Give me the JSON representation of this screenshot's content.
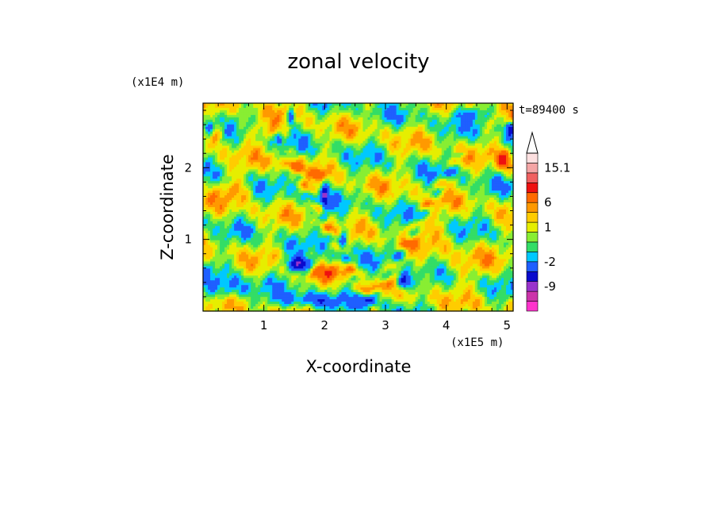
{
  "chart_data": {
    "type": "heatmap",
    "title": "zonal velocity",
    "xlabel": "X-coordinate",
    "ylabel": "Z-coordinate",
    "x_unit": "(x1E5 m)",
    "y_unit": "(x1E4 m)",
    "time_label": "t=89400 s",
    "xlim": [
      0,
      5.1
    ],
    "ylim": [
      0,
      2.9
    ],
    "x_ticks": [
      1,
      2,
      3,
      4,
      5
    ],
    "y_ticks": [
      1,
      2
    ],
    "colorbar": {
      "colors": [
        "#ff33cc",
        "#cc33aa",
        "#9933cc",
        "#0a0acd",
        "#1f5fff",
        "#00c8ff",
        "#33dd66",
        "#88ee33",
        "#e6ee00",
        "#ffcc00",
        "#ff9900",
        "#ff6a00",
        "#ee1111",
        "#f06060",
        "#f4a5a5",
        "#fde0e0"
      ],
      "labels": [
        "-9",
        "-2",
        "1",
        "6",
        "15.1"
      ],
      "label_levels": [
        2.5,
        5,
        8.5,
        11,
        14.5
      ],
      "arrow_top": true
    },
    "features": [
      {
        "cx": 1.0,
        "cz": 2.5,
        "sx": 0.35,
        "sz": 0.12,
        "value": 2.0
      },
      {
        "cx": 1.4,
        "cz": 2.1,
        "sx": 0.3,
        "sz": 0.12,
        "value": 2.0
      },
      {
        "cx": 0.5,
        "cz": 1.7,
        "sx": 0.3,
        "sz": 0.15,
        "value": 2.2
      },
      {
        "cx": 0.2,
        "cz": 2.5,
        "sx": 0.15,
        "sz": 0.15,
        "value": 3.5
      },
      {
        "cx": 0.1,
        "cz": 2.55,
        "sx": 0.08,
        "sz": 0.1,
        "value": -6.0
      },
      {
        "cx": 5.05,
        "cz": 2.55,
        "sx": 0.08,
        "sz": 0.1,
        "value": -5.5
      },
      {
        "cx": 4.95,
        "cz": 2.1,
        "sx": 0.12,
        "sz": 0.14,
        "value": 5.0
      },
      {
        "cx": 2.1,
        "cz": 0.55,
        "sx": 0.3,
        "sz": 0.1,
        "value": 3.0
      },
      {
        "cx": 1.9,
        "cz": 1.9,
        "sx": 0.1,
        "sz": 0.08,
        "value": 4.0
      },
      {
        "cx": 1.6,
        "cz": 0.65,
        "sx": 0.25,
        "sz": 0.1,
        "value": -6.5
      },
      {
        "cx": 3.3,
        "cz": 0.4,
        "sx": 0.12,
        "sz": 0.12,
        "value": -7.0
      },
      {
        "cx": 2.75,
        "cz": 0.1,
        "sx": 0.2,
        "sz": 0.1,
        "value": -4.0
      },
      {
        "cx": 2.3,
        "cz": 1.0,
        "sx": 0.07,
        "sz": 0.2,
        "value": -5.0
      },
      {
        "cx": 2.0,
        "cz": 1.6,
        "sx": 0.06,
        "sz": 0.2,
        "value": -5.0
      },
      {
        "cx": 1.45,
        "cz": 2.7,
        "sx": 0.06,
        "sz": 0.12,
        "value": -5.0
      },
      {
        "cx": 1.25,
        "cz": 2.4,
        "sx": 0.06,
        "sz": 0.08,
        "value": -4.0
      },
      {
        "cx": 4.5,
        "cz": 2.75,
        "sx": 0.3,
        "sz": 0.1,
        "value": -3.0
      },
      {
        "cx": 3.8,
        "cz": 1.2,
        "sx": 0.35,
        "sz": 0.2,
        "value": 1.5
      },
      {
        "cx": 0.4,
        "cz": 0.3,
        "sx": 0.35,
        "sz": 0.15,
        "value": -3.0
      },
      {
        "cx": 1.7,
        "cz": 0.15,
        "sx": 0.5,
        "sz": 0.1,
        "value": -3.0
      },
      {
        "cx": 4.2,
        "cz": 0.6,
        "sx": 0.5,
        "sz": 0.2,
        "value": 1.5
      }
    ]
  }
}
